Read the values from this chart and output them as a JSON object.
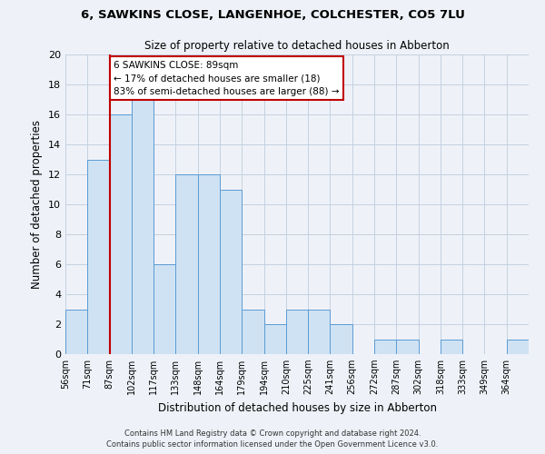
{
  "title1": "6, SAWKINS CLOSE, LANGENHOE, COLCHESTER, CO5 7LU",
  "title2": "Size of property relative to detached houses in Abberton",
  "xlabel": "Distribution of detached houses by size in Abberton",
  "ylabel": "Number of detached properties",
  "bin_labels": [
    "56sqm",
    "71sqm",
    "87sqm",
    "102sqm",
    "117sqm",
    "133sqm",
    "148sqm",
    "164sqm",
    "179sqm",
    "194sqm",
    "210sqm",
    "225sqm",
    "241sqm",
    "256sqm",
    "272sqm",
    "287sqm",
    "302sqm",
    "318sqm",
    "333sqm",
    "349sqm",
    "364sqm"
  ],
  "bar_heights": [
    3,
    13,
    16,
    17,
    6,
    12,
    12,
    11,
    3,
    2,
    3,
    3,
    2,
    0,
    1,
    1,
    0,
    1,
    0,
    0,
    1
  ],
  "bar_color": "#cfe2f3",
  "bar_edge_color": "#5b9bd5",
  "vline_x_index": 2,
  "vline_color": "#c00000",
  "annotation_title": "6 SAWKINS CLOSE: 89sqm",
  "annotation_line1": "← 17% of detached houses are smaller (18)",
  "annotation_line2": "83% of semi-detached houses are larger (88) →",
  "annotation_box_facecolor": "#ffffff",
  "annotation_box_edgecolor": "#c00000",
  "ylim_max": 20,
  "yticks": [
    0,
    2,
    4,
    6,
    8,
    10,
    12,
    14,
    16,
    18,
    20
  ],
  "footer1": "Contains HM Land Registry data © Crown copyright and database right 2024.",
  "footer2": "Contains public sector information licensed under the Open Government Licence v3.0.",
  "bg_color": "#eef2f8",
  "grid_color": "#c5d0e0"
}
